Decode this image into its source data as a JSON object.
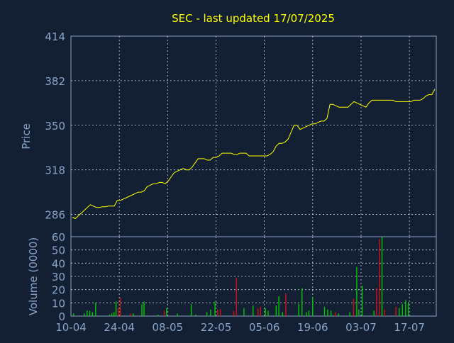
{
  "title": "SEC - last updated 17/07/2025",
  "colors": {
    "background": "#132034",
    "title": "#ffff00",
    "price_line": "#ffff00",
    "axis_text": "#8aa4c8",
    "grid": "#c8d2e0",
    "frame": "#8aa4c8",
    "volume_up": "#00c800",
    "volume_down": "#d01010"
  },
  "chart_data": [
    {
      "type": "line",
      "panel": "price",
      "title": "SEC - last updated 17/07/2025",
      "ylabel": "Price",
      "ylim": [
        270,
        414
      ],
      "yticks": [
        286,
        318,
        350,
        382,
        414
      ],
      "grid": true,
      "x_range": [
        0,
        68
      ],
      "series": [
        {
          "values": [
            284,
            283,
            285,
            287,
            289,
            291,
            293,
            292,
            291,
            291,
            291.5,
            291.5,
            292,
            292,
            292,
            296,
            296,
            297,
            298,
            299,
            300,
            301,
            302,
            302,
            303,
            306,
            307,
            308,
            308,
            309,
            309,
            308,
            310,
            313,
            316,
            317,
            318,
            319,
            318,
            318,
            320,
            323,
            326,
            326,
            326,
            325,
            325,
            327,
            327,
            328,
            330,
            330,
            330,
            330,
            329,
            329,
            330,
            330,
            330,
            328,
            328,
            328,
            328,
            328,
            328,
            328,
            329,
            331,
            335,
            337,
            337,
            338,
            340,
            345,
            350,
            350,
            347,
            348,
            349,
            350,
            351,
            351,
            352,
            353,
            353,
            355,
            365,
            365,
            364,
            363,
            363,
            363,
            363,
            365,
            367,
            366,
            365,
            364,
            363,
            366,
            368,
            368,
            368,
            368,
            368,
            368,
            368,
            368,
            367,
            367,
            367,
            367,
            367,
            367,
            368,
            368,
            368,
            369,
            371,
            372,
            372,
            376
          ]
        }
      ]
    },
    {
      "type": "bar",
      "panel": "volume",
      "ylabel": "Volume (0000)",
      "ylim": [
        0,
        60
      ],
      "yticks": [
        0,
        10,
        20,
        30,
        40,
        50,
        60
      ],
      "grid": true,
      "x_range": [
        0,
        68
      ],
      "xticks": [
        {
          "label": "10-04",
          "x": 0
        },
        {
          "label": "24-04",
          "x": 9
        },
        {
          "label": "08-05",
          "x": 18
        },
        {
          "label": "22-05",
          "x": 27
        },
        {
          "label": "05-06",
          "x": 36
        },
        {
          "label": "19-06",
          "x": 45
        },
        {
          "label": "03-07",
          "x": 54
        },
        {
          "label": "17-07",
          "x": 63
        }
      ],
      "bars": [
        {
          "x": 0.5,
          "v": 2,
          "d": "up"
        },
        {
          "x": 2.5,
          "v": 2,
          "d": "up"
        },
        {
          "x": 3,
          "v": 4,
          "d": "up"
        },
        {
          "x": 3.5,
          "v": 4,
          "d": "up"
        },
        {
          "x": 4,
          "v": 3,
          "d": "up"
        },
        {
          "x": 4.6,
          "v": 10,
          "d": "up"
        },
        {
          "x": 7.2,
          "v": 1,
          "d": "up"
        },
        {
          "x": 7.6,
          "v": 2,
          "d": "up"
        },
        {
          "x": 8,
          "v": 3,
          "d": "up"
        },
        {
          "x": 8.4,
          "v": 11,
          "d": "up"
        },
        {
          "x": 8.8,
          "v": 6,
          "d": "down"
        },
        {
          "x": 9.2,
          "v": 14,
          "d": "down"
        },
        {
          "x": 11.1,
          "v": 2,
          "d": "down"
        },
        {
          "x": 11.6,
          "v": 2,
          "d": "up"
        },
        {
          "x": 13.2,
          "v": 9,
          "d": "up"
        },
        {
          "x": 13.6,
          "v": 11,
          "d": "up"
        },
        {
          "x": 16.2,
          "v": 1,
          "d": "up"
        },
        {
          "x": 17.4,
          "v": 4,
          "d": "down"
        },
        {
          "x": 17.8,
          "v": 6,
          "d": "up"
        },
        {
          "x": 19.8,
          "v": 2,
          "d": "up"
        },
        {
          "x": 22.4,
          "v": 9,
          "d": "up"
        },
        {
          "x": 23.2,
          "v": 1,
          "d": "up"
        },
        {
          "x": 25.3,
          "v": 3,
          "d": "up"
        },
        {
          "x": 26,
          "v": 5,
          "d": "up"
        },
        {
          "x": 26.8,
          "v": 11,
          "d": "up"
        },
        {
          "x": 27.3,
          "v": 5,
          "d": "down"
        },
        {
          "x": 27.8,
          "v": 5,
          "d": "down"
        },
        {
          "x": 30.3,
          "v": 4,
          "d": "down"
        },
        {
          "x": 30.8,
          "v": 29,
          "d": "down"
        },
        {
          "x": 32.2,
          "v": 6,
          "d": "up"
        },
        {
          "x": 33.9,
          "v": 8,
          "d": "up"
        },
        {
          "x": 34.8,
          "v": 6,
          "d": "down"
        },
        {
          "x": 35.3,
          "v": 7,
          "d": "down"
        },
        {
          "x": 36.2,
          "v": 6,
          "d": "up"
        },
        {
          "x": 36.7,
          "v": 4,
          "d": "up"
        },
        {
          "x": 38.2,
          "v": 8,
          "d": "up"
        },
        {
          "x": 38.7,
          "v": 15,
          "d": "up"
        },
        {
          "x": 39.4,
          "v": 3,
          "d": "up"
        },
        {
          "x": 40,
          "v": 17,
          "d": "down"
        },
        {
          "x": 42.4,
          "v": 9,
          "d": "up"
        },
        {
          "x": 43,
          "v": 21,
          "d": "up"
        },
        {
          "x": 43.8,
          "v": 3,
          "d": "up"
        },
        {
          "x": 44.3,
          "v": 4,
          "d": "up"
        },
        {
          "x": 45,
          "v": 14,
          "d": "up"
        },
        {
          "x": 47.2,
          "v": 7,
          "d": "up"
        },
        {
          "x": 47.8,
          "v": 5,
          "d": "up"
        },
        {
          "x": 48.4,
          "v": 4,
          "d": "up"
        },
        {
          "x": 49.2,
          "v": 3,
          "d": "down"
        },
        {
          "x": 49.8,
          "v": 2,
          "d": "up"
        },
        {
          "x": 51.9,
          "v": 3,
          "d": "up"
        },
        {
          "x": 52.6,
          "v": 13,
          "d": "down"
        },
        {
          "x": 53.2,
          "v": 37,
          "d": "up"
        },
        {
          "x": 53.6,
          "v": 5,
          "d": "up"
        },
        {
          "x": 54.2,
          "v": 23,
          "d": "up"
        },
        {
          "x": 56.4,
          "v": 4,
          "d": "up"
        },
        {
          "x": 56.9,
          "v": 21,
          "d": "down"
        },
        {
          "x": 57.4,
          "v": 58,
          "d": "down"
        },
        {
          "x": 57.9,
          "v": 60,
          "d": "up"
        },
        {
          "x": 58.4,
          "v": 5,
          "d": "down"
        },
        {
          "x": 60.5,
          "v": 7,
          "d": "down"
        },
        {
          "x": 61.1,
          "v": 6,
          "d": "up"
        },
        {
          "x": 61.7,
          "v": 9,
          "d": "up"
        },
        {
          "x": 62.3,
          "v": 12,
          "d": "up"
        },
        {
          "x": 62.8,
          "v": 10,
          "d": "up"
        }
      ]
    }
  ]
}
